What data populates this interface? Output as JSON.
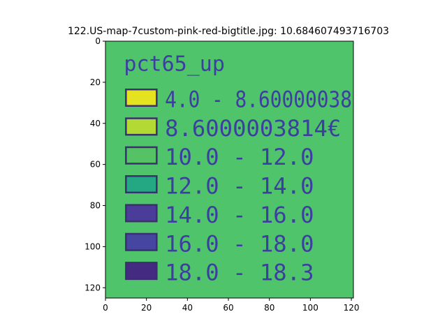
{
  "chart_data": {
    "type": "heatmap",
    "title": "122.US-map-7custom-pink-red-bigtitle.jpg: 10.684607493716703",
    "xlabel": "",
    "ylabel": "",
    "xlim": [
      0,
      121
    ],
    "ylim": [
      125,
      0
    ],
    "x_ticks": [
      0,
      20,
      40,
      60,
      80,
      100,
      120
    ],
    "y_ticks": [
      0,
      20,
      40,
      60,
      80,
      100,
      120
    ],
    "x_tick_labels": [
      "0",
      "20",
      "40",
      "60",
      "80",
      "100",
      "120"
    ],
    "y_tick_labels": [
      "0",
      "20",
      "40",
      "60",
      "80",
      "100",
      "120"
    ],
    "background_color": "#4fc46a",
    "image_content": {
      "legend_title": "pct65_up",
      "legend_entries": [
        {
          "label": "4.0 - 8.60000038",
          "color": "#e5e31f"
        },
        {
          "label": "8.6000003814€",
          "color": "#b3d934"
        },
        {
          "label": "10.0 - 12.0",
          "color": "#56c266"
        },
        {
          "label": "12.0 - 14.0",
          "color": "#24a884"
        },
        {
          "label": "14.0 - 16.0",
          "color": "#4a3c98"
        },
        {
          "label": "16.0 - 18.0",
          "color": "#4446a0"
        },
        {
          "label": "18.0 - 18.3",
          "color": "#452a82"
        }
      ],
      "text_color": "#3c3fa0"
    }
  }
}
